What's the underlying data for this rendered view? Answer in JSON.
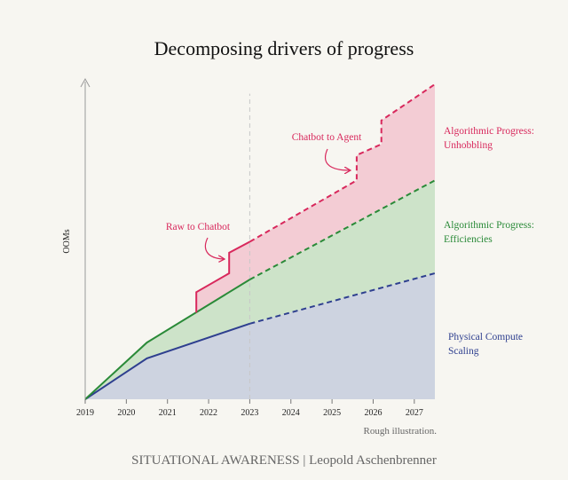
{
  "chart_data": {
    "type": "area",
    "title": "Decomposing drivers of progress",
    "ylabel": "OOMs",
    "xlabel": "",
    "x_start": 2019,
    "x_end": 2027.5,
    "ylim": [
      0,
      10
    ],
    "categories": [
      "2019",
      "2020",
      "2021",
      "2022",
      "2023",
      "2024",
      "2025",
      "2026",
      "2027"
    ],
    "projection_start": 2023,
    "grid": false,
    "series": [
      {
        "name": "Physical Compute Scaling",
        "color": "#2e3f8f",
        "fill": "#cdd3e0",
        "points": [
          [
            2019,
            0
          ],
          [
            2020.5,
            1.3
          ],
          [
            2023,
            2.4
          ],
          [
            2027.5,
            4.0
          ]
        ]
      },
      {
        "name": "Algorithmic Progress: Efficiencies",
        "color": "#2a8a38",
        "fill": "#cde3c9",
        "points": [
          [
            2019,
            0
          ],
          [
            2020.5,
            1.8
          ],
          [
            2023,
            3.8
          ],
          [
            2027.5,
            6.95
          ]
        ]
      },
      {
        "name": "Algorithmic Progress: Unhobbling",
        "color": "#d8285c",
        "fill": "#f3ccd4",
        "points": [
          [
            2021.7,
            2.75
          ],
          [
            2021.7,
            3.4
          ],
          [
            2022.5,
            4.0
          ],
          [
            2022.5,
            4.65
          ],
          [
            2023,
            5.0
          ],
          [
            2025.6,
            6.95
          ],
          [
            2025.6,
            7.75
          ],
          [
            2026.2,
            8.1
          ],
          [
            2026.2,
            8.85
          ],
          [
            2027.5,
            10.0
          ]
        ]
      }
    ],
    "annotations": [
      {
        "text": "Raw to Chatbot",
        "x": 2022.0,
        "y": 5.5
      },
      {
        "text": "Chatbot to Agent",
        "x": 2025.4,
        "y": 8.45
      }
    ],
    "note": "Rough illustration."
  },
  "footer": "SITUATIONAL AWARENESS | Leopold Aschenbrenner"
}
